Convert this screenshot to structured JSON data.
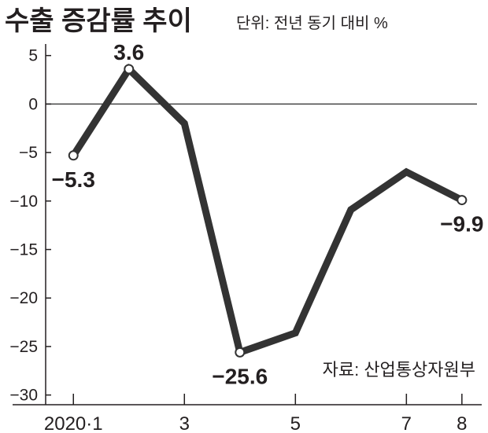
{
  "title": "수출 증감률 추이",
  "unit_note": "단위: 전년 동기 대비 %",
  "source_note": "자료: 산업통상자원부",
  "colors": {
    "line": "#333333",
    "axis": "#231f20",
    "grid": "#444444",
    "text": "#231f20",
    "marker_fill": "#ffffff"
  },
  "chart_data": {
    "type": "line",
    "x": [
      1,
      2,
      3,
      4,
      5,
      6,
      7,
      8
    ],
    "x_tick_values": [
      1,
      3,
      5,
      7,
      8
    ],
    "x_tick_labels": [
      "2020·1",
      "3",
      "5",
      "7",
      "8"
    ],
    "xlim": [
      0.5,
      8.3
    ],
    "ylim": [
      -31,
      7
    ],
    "y_ticks": [
      5,
      0,
      -5,
      -10,
      -15,
      -20,
      -25,
      -30
    ],
    "y_tick_labels": [
      "5",
      "0",
      "-5",
      "-10",
      "-15",
      "-20",
      "-25",
      "-30"
    ],
    "series": [
      {
        "values": [
          -5.3,
          3.6,
          -2.0,
          -25.6,
          -23.6,
          -10.9,
          -7.0,
          -9.9
        ]
      }
    ],
    "markers_at": [
      0,
      1,
      3,
      7
    ],
    "data_labels": [
      {
        "index": 0,
        "text": "-5.3",
        "pos": "below"
      },
      {
        "index": 1,
        "text": "3.6",
        "pos": "above"
      },
      {
        "index": 3,
        "text": "-25.6",
        "pos": "below"
      },
      {
        "index": 7,
        "text": "-9.9",
        "pos": "below"
      }
    ],
    "grid": false,
    "zero_line": true
  }
}
